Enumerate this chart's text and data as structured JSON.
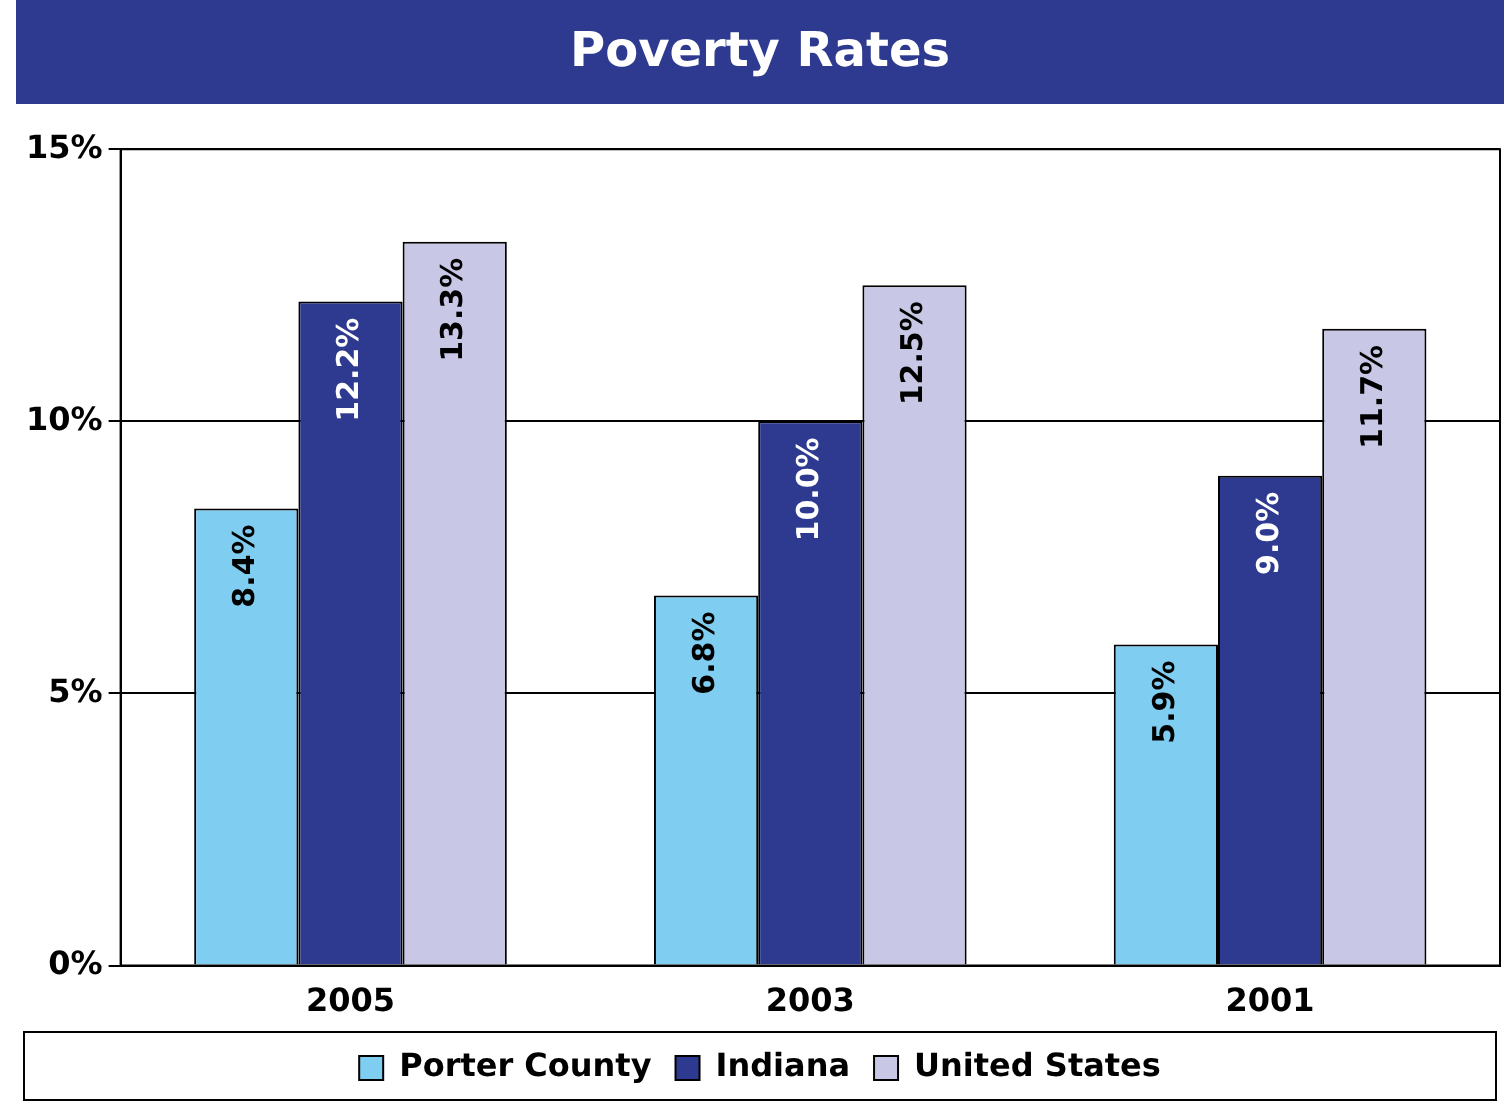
{
  "chart_data": {
    "type": "bar",
    "title": "Poverty Rates",
    "categories": [
      "2005",
      "2003",
      "2001"
    ],
    "series": [
      {
        "name": "Porter County",
        "color": "#7fcdf0",
        "values": [
          8.4,
          6.8,
          5.9
        ],
        "value_labels": [
          "8.4%",
          "6.8%",
          "5.9%"
        ]
      },
      {
        "name": "Indiana",
        "color": "#2e3a8f",
        "values": [
          12.2,
          10.0,
          9.0
        ],
        "value_labels": [
          "12.2%",
          "10.0%",
          "9.0%"
        ]
      },
      {
        "name": "United States",
        "color": "#c8c8e6",
        "values": [
          13.3,
          12.5,
          11.7
        ],
        "value_labels": [
          "13.3%",
          "12.5%",
          "11.7%"
        ]
      }
    ],
    "ylim": [
      0,
      15
    ],
    "yticks": [
      {
        "value": 0,
        "label": "0%"
      },
      {
        "value": 5,
        "label": "5%"
      },
      {
        "value": 10,
        "label": "10%"
      },
      {
        "value": 15,
        "label": "15%"
      }
    ],
    "grid": "y",
    "legend": "bottom"
  }
}
